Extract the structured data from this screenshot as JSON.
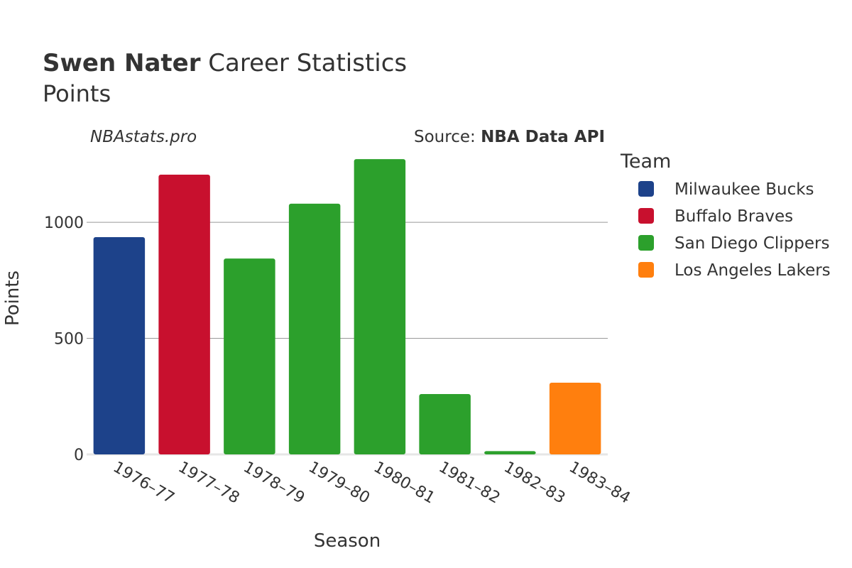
{
  "header": {
    "title_bold": "Swen Nater",
    "title_rest": " Career Statistics",
    "subtitle": "Points",
    "watermark": "NBAstats.pro",
    "source_prefix": "Source: ",
    "source_name": "NBA Data API"
  },
  "chart_data": {
    "type": "bar",
    "xlabel": "Season",
    "ylabel": "Points",
    "ylim": [
      0,
      1300
    ],
    "yticks": [
      0,
      500,
      1000
    ],
    "ytick_labels": [
      "0",
      "500",
      "1000"
    ],
    "grid": true,
    "legend_title": "Team",
    "legend_position": "right",
    "series": [
      {
        "name": "Milwaukee Bucks",
        "color": "#1d428a"
      },
      {
        "name": "Buffalo Braves",
        "color": "#c8102e"
      },
      {
        "name": "San Diego Clippers",
        "color": "#2ca02c"
      },
      {
        "name": "Los Angeles Lakers",
        "color": "#ff7f0e"
      }
    ],
    "bars": [
      {
        "season": "1976–77",
        "team": "Milwaukee Bucks",
        "value": 936
      },
      {
        "season": "1977–78",
        "team": "Buffalo Braves",
        "value": 1205
      },
      {
        "season": "1978–79",
        "team": "San Diego Clippers",
        "value": 844
      },
      {
        "season": "1979–80",
        "team": "San Diego Clippers",
        "value": 1080
      },
      {
        "season": "1980–81",
        "team": "San Diego Clippers",
        "value": 1272
      },
      {
        "season": "1981–82",
        "team": "San Diego Clippers",
        "value": 260
      },
      {
        "season": "1982–83",
        "team": "San Diego Clippers",
        "value": 14
      },
      {
        "season": "1983–84",
        "team": "Los Angeles Lakers",
        "value": 309
      }
    ]
  }
}
